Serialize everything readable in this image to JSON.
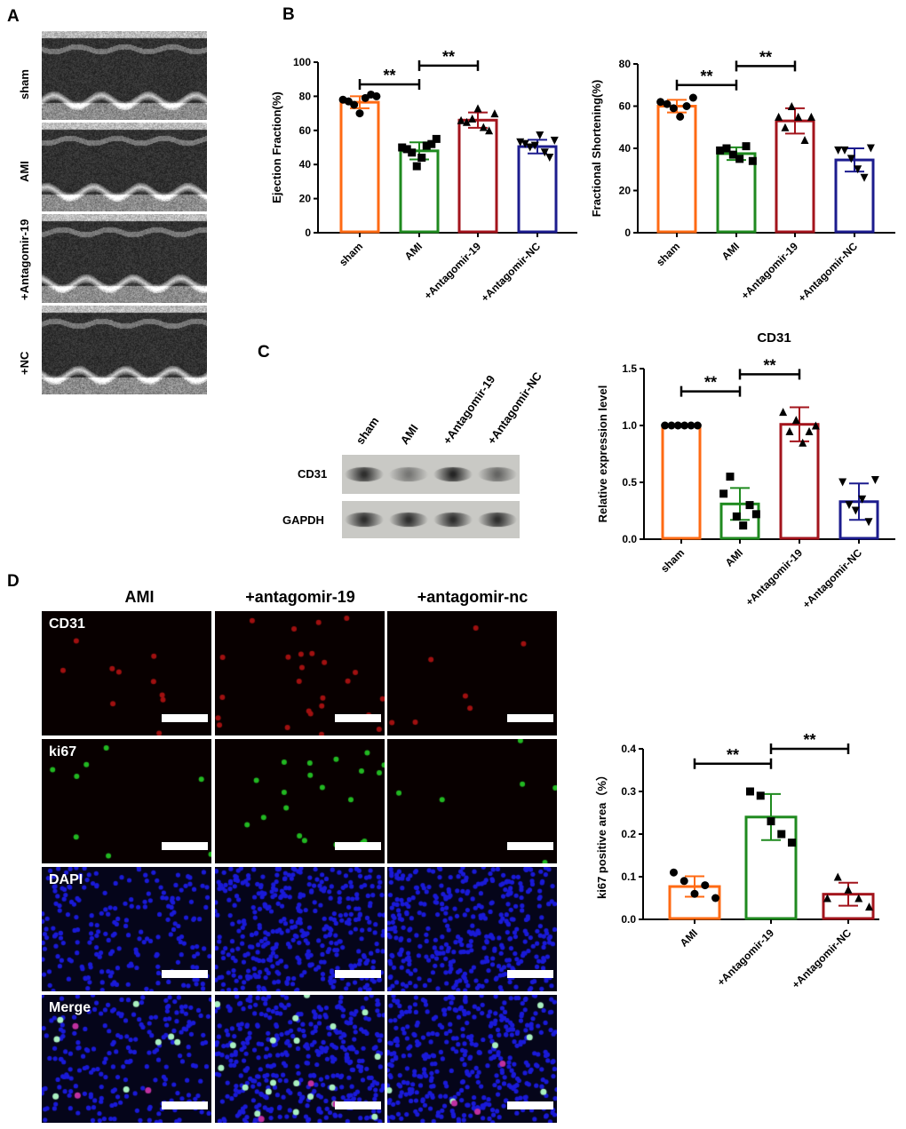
{
  "panels": {
    "a": "A",
    "b": "B",
    "c": "C",
    "d": "D"
  },
  "echo": {
    "rows": [
      "sham",
      "AMI",
      "+Antagomir-19",
      "+NC"
    ]
  },
  "blot": {
    "columns": [
      "sham",
      "AMI",
      "+Antagomir-19",
      "+Antagomir-NC"
    ],
    "rows": [
      "CD31",
      "GAPDH"
    ],
    "cd31_band_intensity": [
      0.85,
      0.45,
      0.9,
      0.55
    ]
  },
  "micro": {
    "columns": [
      "AMI",
      "+antagomir-19",
      "+antagomir-nc"
    ],
    "rows": [
      "CD31",
      "ki67",
      "DAPI",
      "Merge"
    ]
  },
  "colors": {
    "orange": "#ff6a13",
    "green": "#1f8a1f",
    "red": "#a3141c",
    "navy": "#1c1c8e"
  },
  "chart_data": [
    {
      "type": "bar",
      "id": "ef",
      "title": "",
      "ylabel": "Ejection Fraction(%)",
      "ylim": [
        0,
        100
      ],
      "yticks": [
        0,
        20,
        40,
        60,
        80,
        100
      ],
      "categories": [
        "sham",
        "AMI",
        "+Antagomir-19",
        "+Antagomir-NC"
      ],
      "means": [
        76.5,
        48,
        66,
        50.5
      ],
      "sd": [
        3.5,
        5,
        4.5,
        4
      ],
      "points": [
        [
          78,
          77,
          75,
          70,
          79,
          81,
          80
        ],
        [
          50,
          49,
          47,
          39,
          44,
          51,
          52,
          55
        ],
        [
          66,
          65,
          67,
          73,
          62,
          60,
          70
        ],
        [
          53,
          52,
          50,
          51,
          57,
          47,
          44,
          54
        ]
      ],
      "markers": [
        "circle",
        "square",
        "triangle",
        "triangle-down"
      ],
      "colors": [
        "#ff6a13",
        "#1f8a1f",
        "#a3141c",
        "#1c1c8e"
      ],
      "significance": [
        {
          "from": "sham",
          "to": "AMI",
          "label": "**"
        },
        {
          "from": "AMI",
          "to": "+Antagomir-19",
          "label": "**"
        }
      ]
    },
    {
      "type": "bar",
      "id": "fs",
      "title": "",
      "ylabel": "Fractional Shortening(%)",
      "ylim": [
        0,
        80
      ],
      "yticks": [
        0,
        20,
        40,
        60,
        80
      ],
      "categories": [
        "sham",
        "AMI",
        "+Antagomir-19",
        "+Antagomir-NC"
      ],
      "means": [
        60,
        37.5,
        53,
        34.5
      ],
      "sd": [
        3,
        3,
        6,
        5.5
      ],
      "points": [
        [
          62,
          61,
          59,
          55,
          60,
          64
        ],
        [
          39,
          40,
          37,
          35,
          41,
          34
        ],
        [
          55,
          50,
          60,
          55,
          44,
          55
        ],
        [
          39,
          39,
          35,
          30,
          26,
          40
        ]
      ],
      "markers": [
        "circle",
        "square",
        "triangle",
        "triangle-down"
      ],
      "colors": [
        "#ff6a13",
        "#1f8a1f",
        "#a3141c",
        "#1c1c8e"
      ],
      "significance": [
        {
          "from": "sham",
          "to": "AMI",
          "label": "**"
        },
        {
          "from": "AMI",
          "to": "+Antagomir-19",
          "label": "**"
        }
      ]
    },
    {
      "type": "bar",
      "id": "cd31",
      "title": "CD31",
      "ylabel": "Relative expression level",
      "ylim": [
        0,
        1.5
      ],
      "yticks": [
        "0.0",
        "0.5",
        "1.0",
        "1.5"
      ],
      "categories": [
        "sham",
        "AMI",
        "+Antagomir-19",
        "+Antagomir-NC"
      ],
      "means": [
        1.0,
        0.31,
        1.01,
        0.33
      ],
      "sd": [
        0,
        0.14,
        0.15,
        0.16
      ],
      "points": [
        [
          1,
          1,
          1,
          1,
          1,
          1
        ],
        [
          0.4,
          0.55,
          0.2,
          0.12,
          0.3,
          0.22
        ],
        [
          1.12,
          0.95,
          1.05,
          0.85,
          0.95,
          1.0
        ],
        [
          0.5,
          0.3,
          0.25,
          0.35,
          0.15,
          0.52
        ]
      ],
      "markers": [
        "circle",
        "square",
        "triangle",
        "triangle-down"
      ],
      "colors": [
        "#ff6a13",
        "#1f8a1f",
        "#a3141c",
        "#1c1c8e"
      ],
      "significance": [
        {
          "from": "sham",
          "to": "AMI",
          "label": "**"
        },
        {
          "from": "AMI",
          "to": "+Antagomir-19",
          "label": "**"
        }
      ]
    },
    {
      "type": "bar",
      "id": "ki67",
      "title": "",
      "ylabel": "ki67 positive area（%）",
      "ylim": [
        0,
        0.4
      ],
      "yticks": [
        "0.0",
        "0.1",
        "0.2",
        "0.3",
        "0.4"
      ],
      "categories": [
        "AMI",
        "+Antagomir-19",
        "+Antagomir-NC"
      ],
      "means": [
        0.077,
        0.24,
        0.059
      ],
      "sd": [
        0.024,
        0.054,
        0.027
      ],
      "points": [
        [
          0.11,
          0.09,
          0.06,
          0.08,
          0.05
        ],
        [
          0.3,
          0.29,
          0.23,
          0.2,
          0.18
        ],
        [
          0.05,
          0.1,
          0.07,
          0.05,
          0.03
        ]
      ],
      "markers": [
        "circle",
        "square",
        "triangle"
      ],
      "colors": [
        "#ff6a13",
        "#1f8a1f",
        "#a3141c"
      ],
      "significance": [
        {
          "from": "AMI",
          "to": "+Antagomir-19",
          "label": "**"
        },
        {
          "from": "+Antagomir-19",
          "to": "+Antagomir-NC",
          "label": "**"
        }
      ]
    }
  ]
}
